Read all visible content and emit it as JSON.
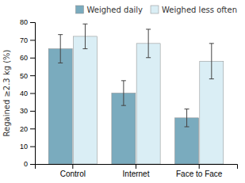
{
  "chart_data": {
    "type": "bar",
    "categories": [
      "Control",
      "Internet",
      "Face to Face"
    ],
    "series": [
      {
        "name": "Weighed daily",
        "color": "#7aabbe",
        "values": [
          65,
          40,
          26
        ],
        "errors": [
          8,
          7,
          5
        ]
      },
      {
        "name": "Weighed less often",
        "color": "#daeef5",
        "values": [
          72,
          68,
          58
        ],
        "errors": [
          7,
          8,
          10
        ]
      }
    ],
    "ylabel": "Regained ≥2.3 kg (%)",
    "ylim": [
      0,
      80
    ],
    "yticks": [
      0,
      10,
      20,
      30,
      40,
      50,
      60,
      70,
      80
    ],
    "legend": "upper right"
  }
}
